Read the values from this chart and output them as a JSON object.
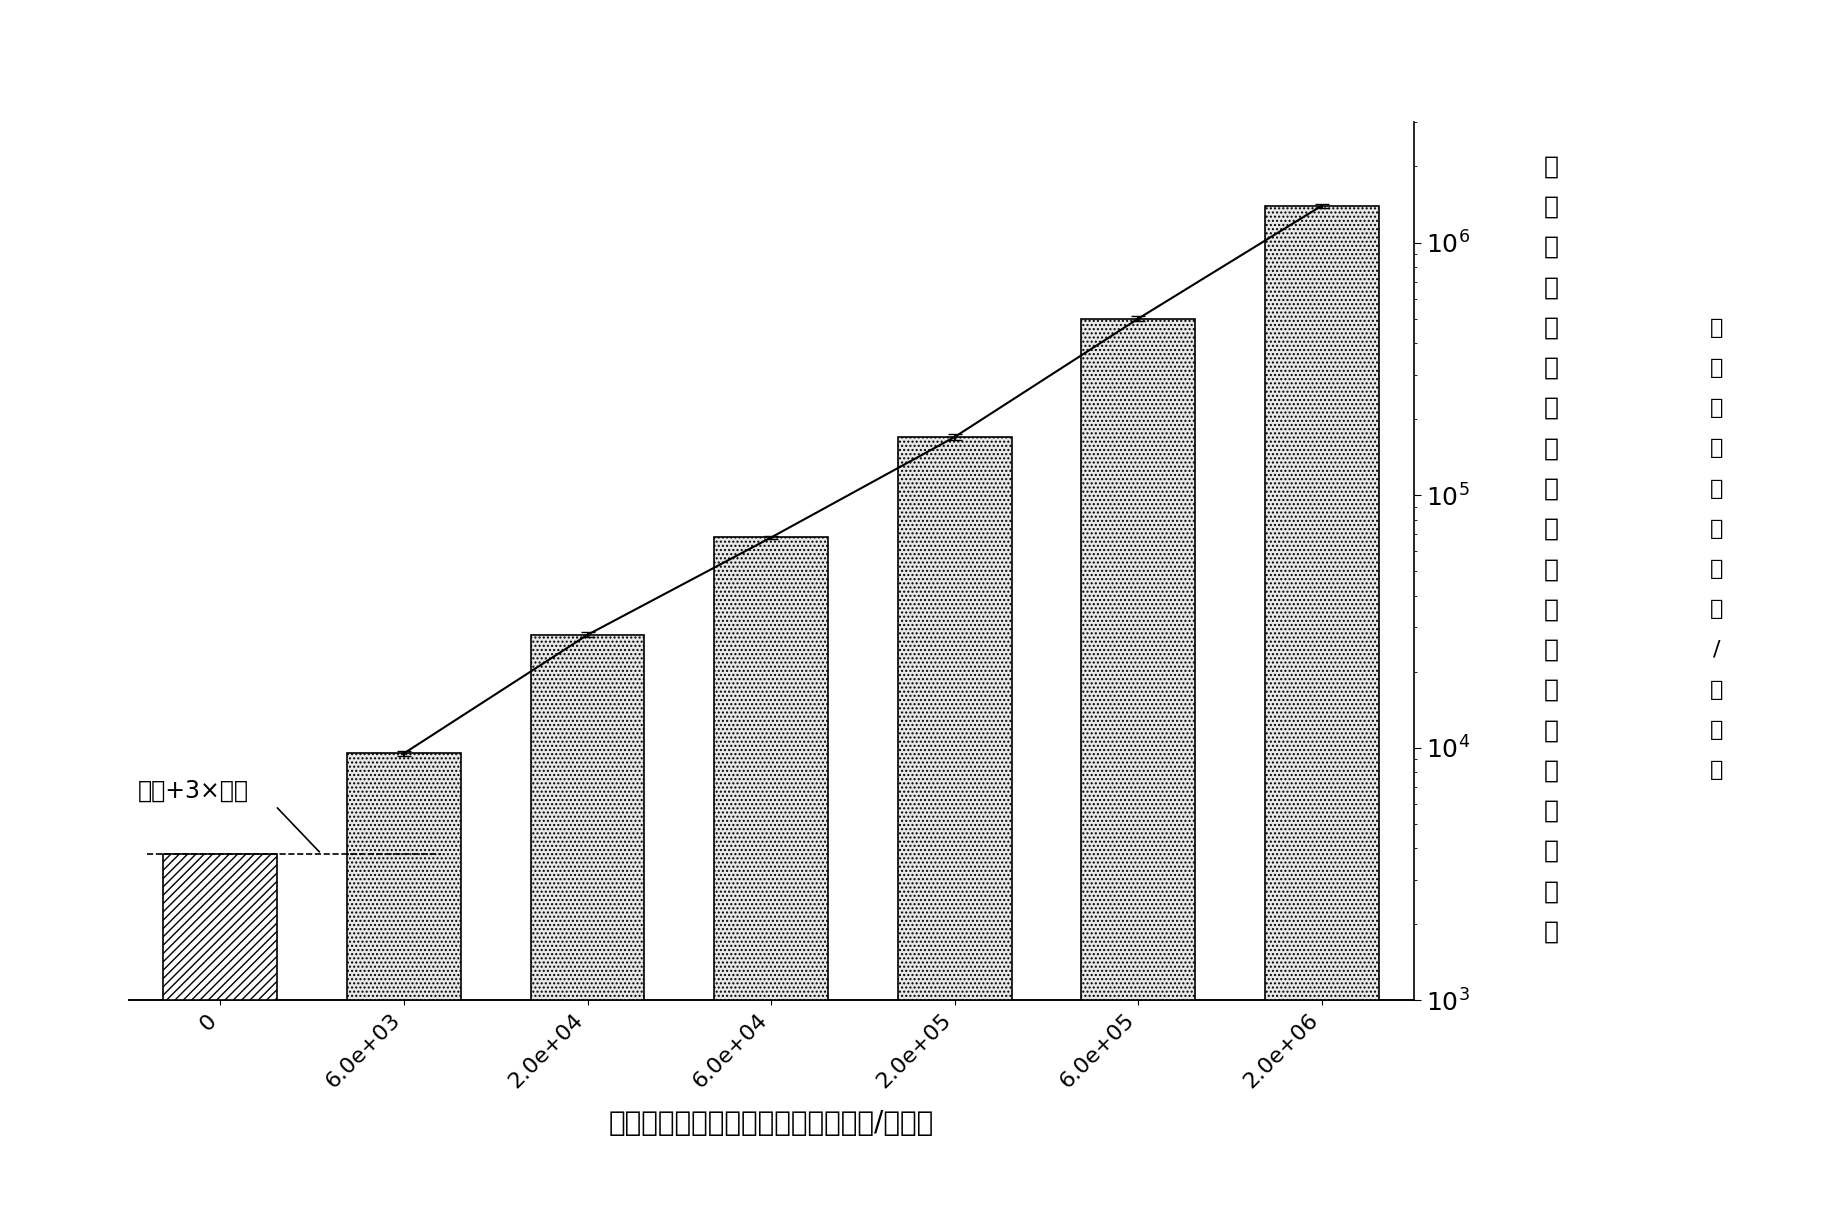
{
  "categories": [
    "0",
    "6.0e+03",
    "2.0e+04",
    "6.0e+04",
    "2.0e+05",
    "6.0e+05",
    "2.0e+06"
  ],
  "bar_values": [
    3800,
    9500,
    28000,
    68000,
    170000,
    500000,
    1400000
  ],
  "bar_errors": [
    0,
    200,
    600,
    1200,
    4000,
    12000,
    25000
  ],
  "background_threshold": 3800,
  "xlabel": "结核杆菌的浓度　（单位：细菌数量/毫升）",
  "ylabel_right_chars": [
    "单",
    "位",
    "体",
    "积",
    "中",
    "具",
    "有",
    "荧",
    "光",
    "双",
    "阳",
    "性",
    "信",
    "号",
    "的",
    "对",
    "象",
    "的",
    "数",
    "量"
  ],
  "ylabel_right_sub_chars": [
    "（",
    "单",
    "位",
    "：",
    "对",
    "象",
    "数",
    "量",
    "/",
    "毫",
    "升",
    "）"
  ],
  "annotation_text": "背景+3×噪声",
  "ylim_log": [
    1000,
    3000000
  ],
  "background_color": "#ffffff",
  "line_color": "#000000",
  "xlabel_fontsize": 20,
  "ylabel_fontsize": 18,
  "tick_fontsize": 16,
  "annotation_fontsize": 17
}
